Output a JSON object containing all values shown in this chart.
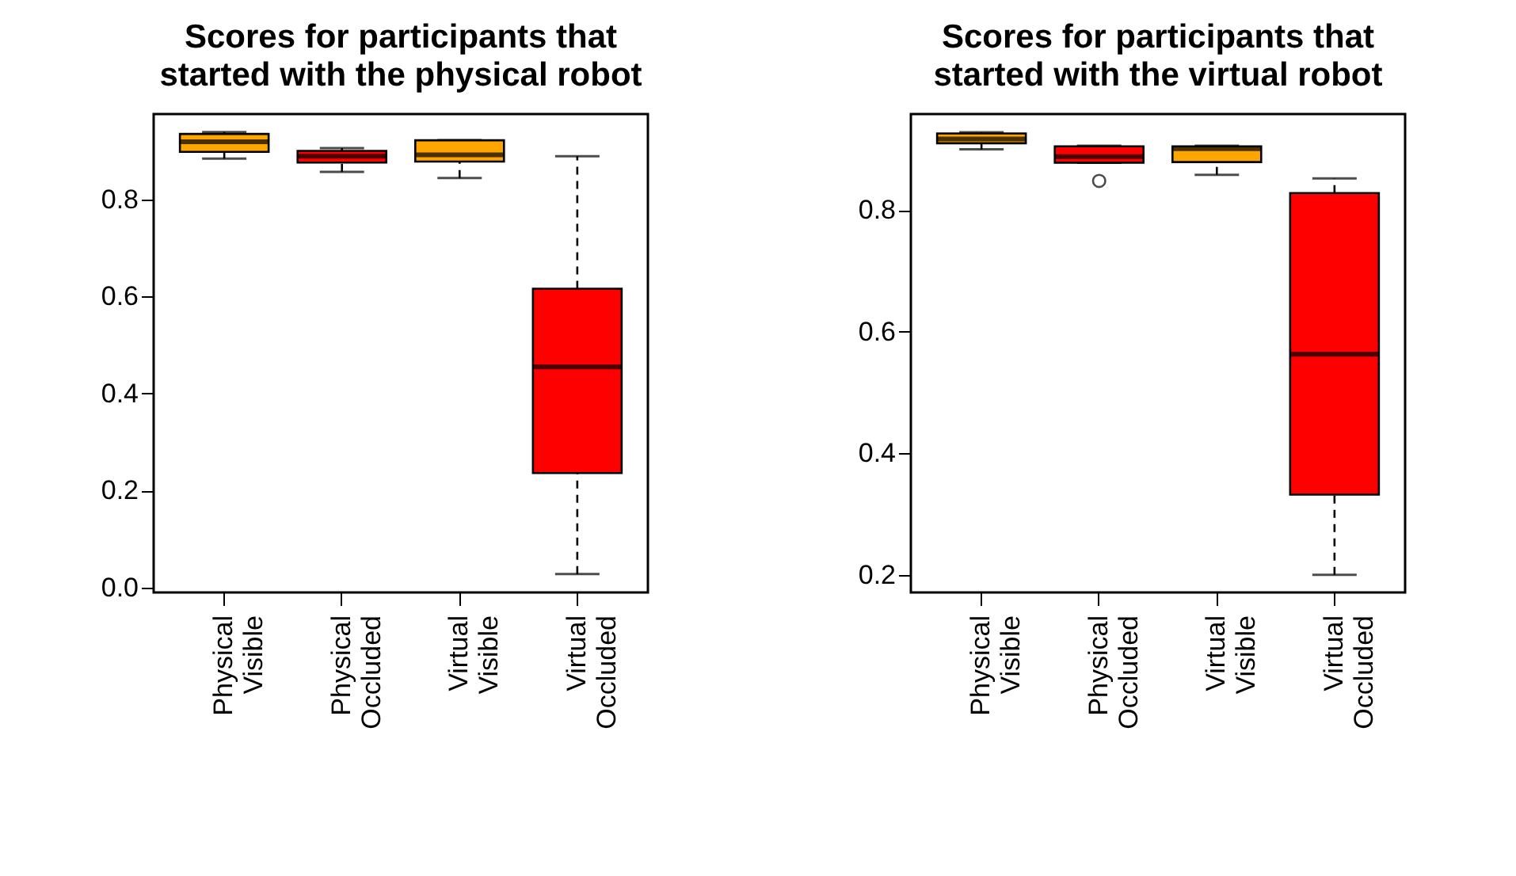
{
  "chart_data": [
    {
      "type": "box",
      "title": "Scores for participants that started with the physical robot",
      "categories": [
        "Physical Visible",
        "Physical Occluded",
        "Virtual Visible",
        "Virtual Occluded"
      ],
      "colors": [
        "#ffa500",
        "#ff0000",
        "#ffa500",
        "#ff0000"
      ],
      "boxes": [
        {
          "low": 0.884,
          "q1": 0.898,
          "median": 0.919,
          "q3": 0.935,
          "high": 0.939
        },
        {
          "low": 0.857,
          "q1": 0.876,
          "median": 0.889,
          "q3": 0.9,
          "high": 0.906
        },
        {
          "low": 0.844,
          "q1": 0.878,
          "median": 0.892,
          "q3": 0.922,
          "high": 0.922
        },
        {
          "low": 0.028,
          "q1": 0.236,
          "median": 0.455,
          "q3": 0.616,
          "high": 0.889
        }
      ],
      "ylim": [
        -0.01,
        0.976
      ],
      "yticks": [
        {
          "value": 0,
          "label": "0.0"
        },
        0.2,
        0.4,
        0.6,
        0.8
      ],
      "grid": false
    },
    {
      "type": "box",
      "title": "Scores for participants that started with the virtual robot",
      "categories": [
        "Physical Visible",
        "Physical Occluded",
        "Virtual Visible",
        "Virtual Occluded"
      ],
      "colors": [
        "#ffa500",
        "#ff0000",
        "#ffa500",
        "#ff0000"
      ],
      "boxes": [
        {
          "low": 0.9,
          "q1": 0.91,
          "median": 0.917,
          "q3": 0.926,
          "high": 0.928
        },
        {
          "low": 0.878,
          "q1": 0.878,
          "median": 0.888,
          "q3": 0.905,
          "high": 0.906,
          "outliers": [
            0.848
          ]
        },
        {
          "low": 0.858,
          "q1": 0.879,
          "median": 0.901,
          "q3": 0.905,
          "high": 0.906
        },
        {
          "low": 0.2,
          "q1": 0.332,
          "median": 0.563,
          "q3": 0.828,
          "high": 0.852
        }
      ],
      "ylim": [
        0.171,
        0.958
      ],
      "yticks": [
        0.2,
        0.4,
        0.6,
        0.8
      ],
      "grid": false
    }
  ]
}
